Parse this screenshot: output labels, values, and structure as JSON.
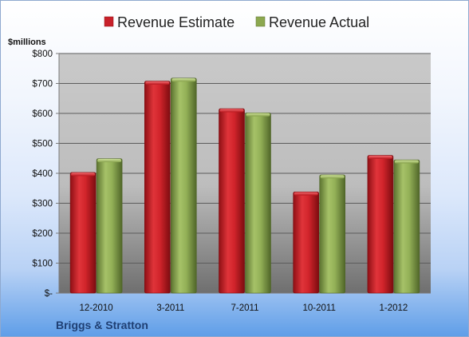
{
  "chart_data": {
    "type": "bar",
    "unit_label": "$millions",
    "company": "Briggs & Stratton",
    "categories": [
      "12-2010",
      "3-2011",
      "7-2011",
      "10-2011",
      "1-2012"
    ],
    "series": [
      {
        "name": "Revenue Estimate",
        "color": "#c8202a",
        "values": [
          403,
          708,
          616,
          338,
          460
        ]
      },
      {
        "name": "Revenue Actual",
        "color": "#8ca84f",
        "values": [
          449,
          718,
          602,
          395,
          445
        ]
      }
    ],
    "ylim": [
      0,
      800
    ],
    "yticks": [
      0,
      100,
      200,
      300,
      400,
      500,
      600,
      700,
      800
    ],
    "ytick_labels": [
      "$-",
      "$100",
      "$200",
      "$300",
      "$400",
      "$500",
      "$600",
      "$700",
      "$800"
    ],
    "grid": true,
    "legend_position": "top"
  }
}
